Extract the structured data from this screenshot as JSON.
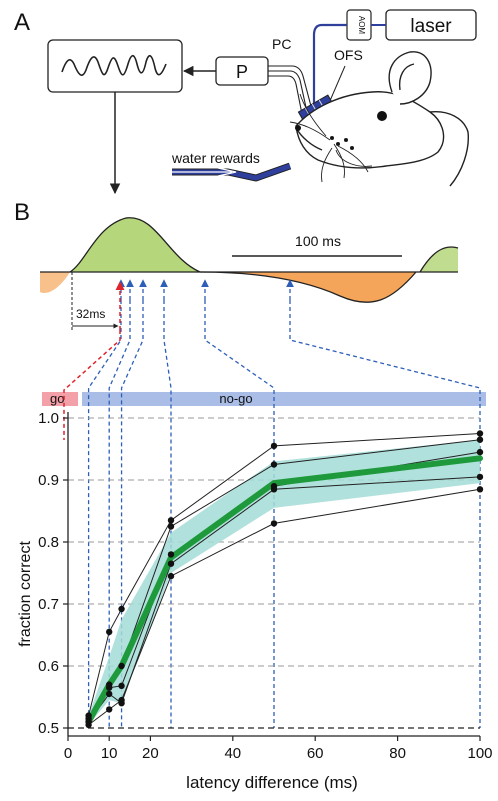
{
  "panel_a": {
    "panel_label": "A",
    "laser_label": "laser",
    "aom_label": "AOM",
    "pc_label": "PC",
    "ofs_label": "OFS",
    "p_label": "P",
    "rewards_label": "water rewards"
  },
  "panel_b": {
    "panel_label": "B",
    "scale_bar_label": "100 ms",
    "offset_label": "32ms",
    "go_label": "go",
    "nogo_label": "no-go"
  },
  "colors": {
    "lfp_positive": "#b5d67a",
    "lfp_negative": "#f5a55a",
    "go_bar": "#f4a0a8",
    "nogo_bar": "#a9bde6",
    "mean_line": "#1e9a3c",
    "ci_band": "#a3dcd6",
    "guide_blue": "#2e5fb8",
    "guide_red": "#e0242c",
    "fiber": "#2f3f9c"
  },
  "chart_data": {
    "type": "line",
    "xlabel": "latency difference (ms)",
    "ylabel": "fraction correct",
    "xlim": [
      0,
      100
    ],
    "ylim": [
      0.5,
      1.0
    ],
    "xticks": [
      0,
      10,
      20,
      40,
      60,
      80,
      100
    ],
    "yticks": [
      0.5,
      0.6,
      0.7,
      0.8,
      0.9,
      1.0
    ],
    "grid": "horizontal dashed",
    "x": [
      5,
      10,
      13,
      25,
      50,
      100
    ],
    "series": [
      {
        "values": [
          0.52,
          0.655,
          0.692,
          0.835,
          0.955,
          0.975
        ]
      },
      {
        "values": [
          0.51,
          0.57,
          0.6,
          0.825,
          0.925,
          0.965
        ]
      },
      {
        "values": [
          0.515,
          0.565,
          0.568,
          0.78,
          0.89,
          0.945
        ]
      },
      {
        "values": [
          0.51,
          0.555,
          0.54,
          0.765,
          0.885,
          0.905
        ]
      },
      {
        "values": [
          0.505,
          0.53,
          0.545,
          0.745,
          0.83,
          0.885
        ]
      }
    ],
    "mean": [
      0.51,
      0.57,
      0.6,
      0.775,
      0.895,
      0.935
    ],
    "ci_low": [
      0.505,
      0.545,
      0.54,
      0.75,
      0.855,
      0.895
    ],
    "ci_high": [
      0.52,
      0.615,
      0.675,
      0.815,
      0.93,
      0.965
    ],
    "chance_level": 0.5,
    "guide_x": [
      5,
      10,
      13,
      25,
      50,
      100
    ]
  }
}
